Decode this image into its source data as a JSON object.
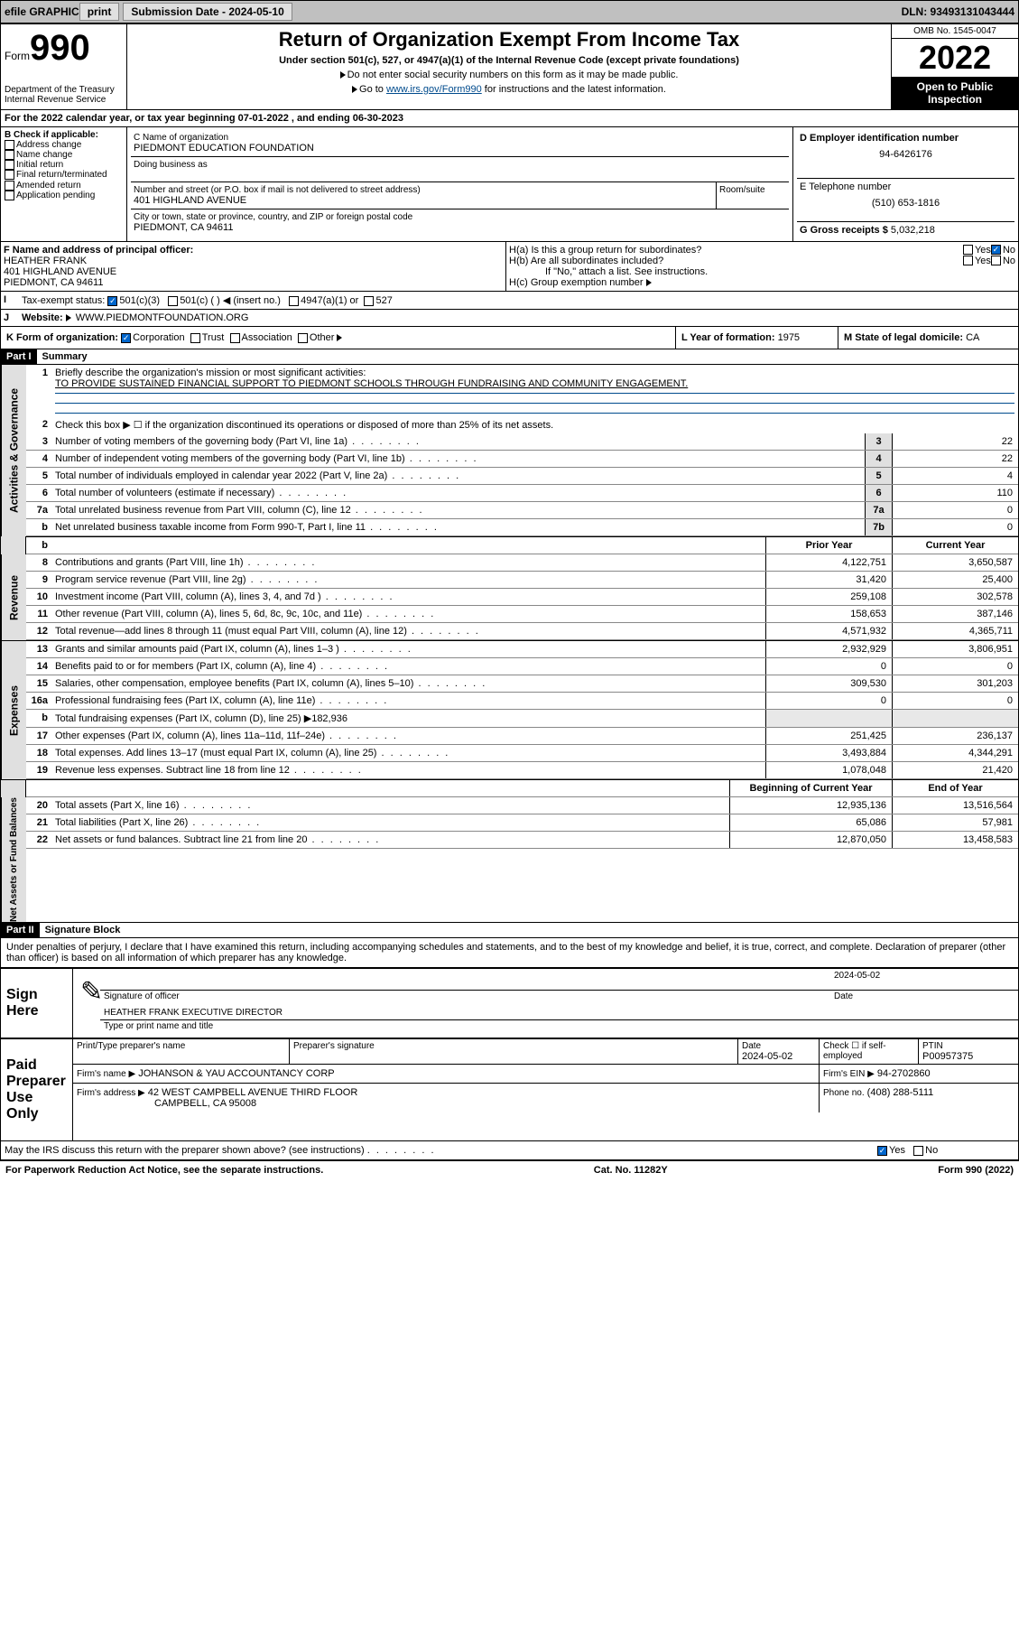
{
  "topbar": {
    "efile_label": "efile GRAPHIC",
    "print_label": "print",
    "submission_label": "Submission Date - 2024-05-10",
    "dln": "DLN: 93493131043444"
  },
  "header": {
    "form_word": "Form",
    "form_number": "990",
    "title": "Return of Organization Exempt From Income Tax",
    "subtitle": "Under section 501(c), 527, or 4947(a)(1) of the Internal Revenue Code (except private foundations)",
    "note1": "Do not enter social security numbers on this form as it may be made public.",
    "note2_pre": "Go to ",
    "note2_link": "www.irs.gov/Form990",
    "note2_post": " for instructions and the latest information.",
    "dept": "Department of the Treasury",
    "irs": "Internal Revenue Service",
    "omb": "OMB No. 1545-0047",
    "year": "2022",
    "open": "Open to Public Inspection"
  },
  "line_a": "For the 2022 calendar year, or tax year beginning 07-01-2022   , and ending 06-30-2023",
  "box_b": {
    "label": "B Check if applicable:",
    "items": [
      "Address change",
      "Name change",
      "Initial return",
      "Final return/terminated",
      "Amended return",
      "Application pending"
    ]
  },
  "box_c": {
    "label": "C Name of organization",
    "name": "PIEDMONT EDUCATION FOUNDATION",
    "dba_label": "Doing business as",
    "dba": "",
    "addr_label": "Number and street (or P.O. box if mail is not delivered to street address)",
    "addr": "401 HIGHLAND AVENUE",
    "room_label": "Room/suite",
    "city_label": "City or town, state or province, country, and ZIP or foreign postal code",
    "city": "PIEDMONT, CA  94611"
  },
  "box_d": {
    "label": "D Employer identification number",
    "value": "94-6426176"
  },
  "box_e": {
    "label": "E Telephone number",
    "value": "(510) 653-1816"
  },
  "box_g": {
    "label": "G Gross receipts $",
    "value": "5,032,218"
  },
  "box_f": {
    "label": "F Name and address of principal officer:",
    "name": "HEATHER FRANK",
    "addr1": "401 HIGHLAND AVENUE",
    "addr2": "PIEDMONT, CA  94611"
  },
  "box_h": {
    "ha": "H(a)  Is this a group return for subordinates?",
    "hb": "H(b)  Are all subordinates included?",
    "note": "If \"No,\" attach a list. See instructions.",
    "hc": "H(c)  Group exemption number",
    "yes": "Yes",
    "no": "No"
  },
  "line_i": {
    "label": "Tax-exempt status:",
    "opts": [
      "501(c)(3)",
      "501(c) (  ) ◀ (insert no.)",
      "4947(a)(1) or",
      "527"
    ]
  },
  "line_j": {
    "label": "Website:",
    "value": "WWW.PIEDMONTFOUNDATION.ORG"
  },
  "line_k": {
    "label": "K Form of organization:",
    "opts": [
      "Corporation",
      "Trust",
      "Association",
      "Other"
    ]
  },
  "line_l": {
    "label": "L Year of formation:",
    "value": "1975"
  },
  "line_m": {
    "label": "M State of legal domicile:",
    "value": "CA"
  },
  "part1": {
    "header": "Part I",
    "title": "Summary",
    "line1_label": "Briefly describe the organization's mission or most significant activities:",
    "line1_value": "TO PROVIDE SUSTAINED FINANCIAL SUPPORT TO PIEDMONT SCHOOLS THROUGH FUNDRAISING AND COMMUNITY ENGAGEMENT.",
    "line2": "Check this box ▶ ☐  if the organization discontinued its operations or disposed of more than 25% of its net assets.",
    "gov_rows": [
      {
        "n": "3",
        "desc": "Number of voting members of the governing body (Part VI, line 1a)",
        "box": "3",
        "val": "22"
      },
      {
        "n": "4",
        "desc": "Number of independent voting members of the governing body (Part VI, line 1b)",
        "box": "4",
        "val": "22"
      },
      {
        "n": "5",
        "desc": "Total number of individuals employed in calendar year 2022 (Part V, line 2a)",
        "box": "5",
        "val": "4"
      },
      {
        "n": "6",
        "desc": "Total number of volunteers (estimate if necessary)",
        "box": "6",
        "val": "110"
      },
      {
        "n": "7a",
        "desc": "Total unrelated business revenue from Part VIII, column (C), line 12",
        "box": "7a",
        "val": "0"
      },
      {
        "n": "b",
        "desc": "Net unrelated business taxable income from Form 990-T, Part I, line 11",
        "box": "7b",
        "val": "0"
      }
    ],
    "prior_hdr": "Prior Year",
    "current_hdr": "Current Year",
    "rev_rows": [
      {
        "n": "8",
        "desc": "Contributions and grants (Part VIII, line 1h)",
        "prior": "4,122,751",
        "curr": "3,650,587"
      },
      {
        "n": "9",
        "desc": "Program service revenue (Part VIII, line 2g)",
        "prior": "31,420",
        "curr": "25,400"
      },
      {
        "n": "10",
        "desc": "Investment income (Part VIII, column (A), lines 3, 4, and 7d )",
        "prior": "259,108",
        "curr": "302,578"
      },
      {
        "n": "11",
        "desc": "Other revenue (Part VIII, column (A), lines 5, 6d, 8c, 9c, 10c, and 11e)",
        "prior": "158,653",
        "curr": "387,146"
      },
      {
        "n": "12",
        "desc": "Total revenue—add lines 8 through 11 (must equal Part VIII, column (A), line 12)",
        "prior": "4,571,932",
        "curr": "4,365,711"
      }
    ],
    "exp_rows": [
      {
        "n": "13",
        "desc": "Grants and similar amounts paid (Part IX, column (A), lines 1–3 )",
        "prior": "2,932,929",
        "curr": "3,806,951"
      },
      {
        "n": "14",
        "desc": "Benefits paid to or for members (Part IX, column (A), line 4)",
        "prior": "0",
        "curr": "0"
      },
      {
        "n": "15",
        "desc": "Salaries, other compensation, employee benefits (Part IX, column (A), lines 5–10)",
        "prior": "309,530",
        "curr": "301,203"
      },
      {
        "n": "16a",
        "desc": "Professional fundraising fees (Part IX, column (A), line 11e)",
        "prior": "0",
        "curr": "0"
      },
      {
        "n": "b",
        "desc": "Total fundraising expenses (Part IX, column (D), line 25) ▶182,936",
        "prior": "",
        "curr": "",
        "grey": true
      },
      {
        "n": "17",
        "desc": "Other expenses (Part IX, column (A), lines 11a–11d, 11f–24e)",
        "prior": "251,425",
        "curr": "236,137"
      },
      {
        "n": "18",
        "desc": "Total expenses. Add lines 13–17 (must equal Part IX, column (A), line 25)",
        "prior": "3,493,884",
        "curr": "4,344,291"
      },
      {
        "n": "19",
        "desc": "Revenue less expenses. Subtract line 18 from line 12",
        "prior": "1,078,048",
        "curr": "21,420"
      }
    ],
    "begin_hdr": "Beginning of Current Year",
    "end_hdr": "End of Year",
    "net_rows": [
      {
        "n": "20",
        "desc": "Total assets (Part X, line 16)",
        "prior": "12,935,136",
        "curr": "13,516,564"
      },
      {
        "n": "21",
        "desc": "Total liabilities (Part X, line 26)",
        "prior": "65,086",
        "curr": "57,981"
      },
      {
        "n": "22",
        "desc": "Net assets or fund balances. Subtract line 21 from line 20",
        "prior": "12,870,050",
        "curr": "13,458,583"
      }
    ],
    "vtabs": {
      "gov": "Activities & Governance",
      "rev": "Revenue",
      "exp": "Expenses",
      "net": "Net Assets or Fund Balances"
    }
  },
  "part2": {
    "header": "Part II",
    "title": "Signature Block",
    "declaration": "Under penalties of perjury, I declare that I have examined this return, including accompanying schedules and statements, and to the best of my knowledge and belief, it is true, correct, and complete. Declaration of preparer (other than officer) is based on all information of which preparer has any knowledge.",
    "sign_here": "Sign Here",
    "sig_officer": "Signature of officer",
    "sig_date": "2024-05-02",
    "date_label": "Date",
    "officer_name": "HEATHER FRANK EXECUTIVE DIRECTOR",
    "type_name": "Type or print name and title",
    "paid": "Paid Preparer Use Only",
    "prep_name_label": "Print/Type preparer's name",
    "prep_sig_label": "Preparer's signature",
    "prep_date_label": "Date",
    "prep_date": "2024-05-02",
    "check_if": "Check ☐ if self-employed",
    "ptin_label": "PTIN",
    "ptin": "P00957375",
    "firm_name_label": "Firm's name   ▶",
    "firm_name": "JOHANSON & YAU ACCOUNTANCY CORP",
    "firm_ein_label": "Firm's EIN ▶",
    "firm_ein": "94-2702860",
    "firm_addr_label": "Firm's address ▶",
    "firm_addr1": "42 WEST CAMPBELL AVENUE THIRD FLOOR",
    "firm_addr2": "CAMPBELL, CA  95008",
    "phone_label": "Phone no.",
    "phone": "(408) 288-5111",
    "may_irs": "May the IRS discuss this return with the preparer shown above? (see instructions)",
    "yes": "Yes",
    "no": "No"
  },
  "footer": {
    "paperwork": "For Paperwork Reduction Act Notice, see the separate instructions.",
    "cat": "Cat. No. 11282Y",
    "form": "Form 990 (2022)"
  },
  "colors": {
    "link": "#004b8d",
    "topbar_bg": "#c0c0c0",
    "checked": "#0066cc"
  }
}
